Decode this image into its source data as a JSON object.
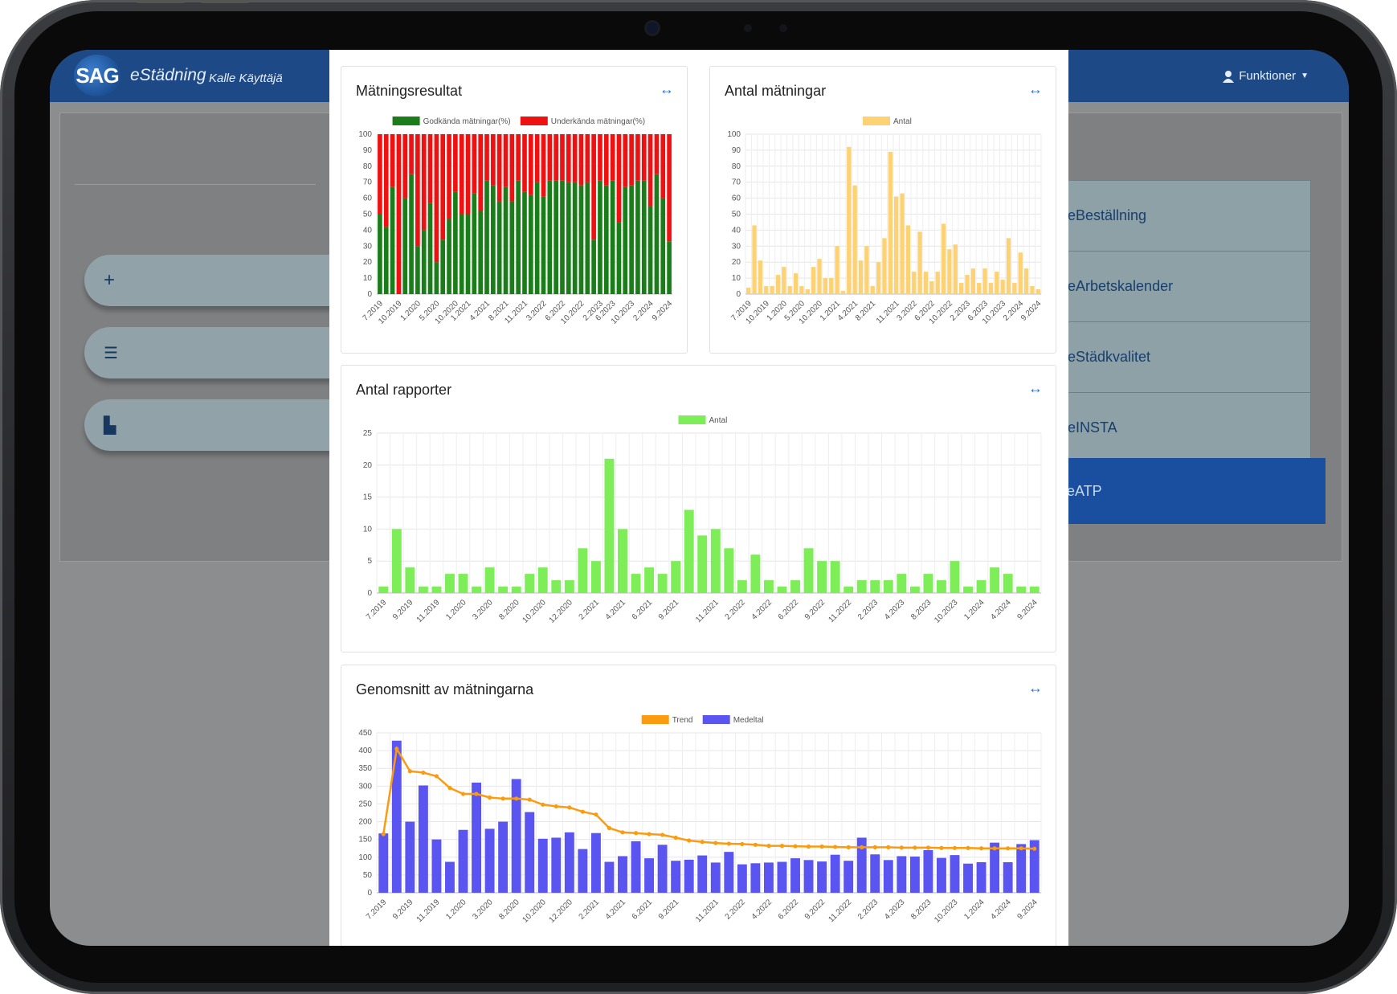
{
  "app": {
    "logo": "SAG",
    "name": "eStädning",
    "user": "Kalle Käyttäjä",
    "functions_label": "Funktioner"
  },
  "left_buttons": [
    {
      "icon": "plus-icon",
      "glyph": "+"
    },
    {
      "icon": "list-icon",
      "glyph": "☰"
    },
    {
      "icon": "chart-icon",
      "glyph": "▙"
    }
  ],
  "menu": {
    "items": [
      "eBeställning",
      "eArbetskalender",
      "eStädkvalitet",
      "eINSTA"
    ],
    "active": "eATP"
  },
  "cards": {
    "c1": "Mätningsresultat",
    "c2": "Antal mätningar",
    "c3": "Antal rapporter",
    "c4": "Genomsnitt av mätningarna",
    "expand_glyph": "↔"
  },
  "chart_data": [
    {
      "type": "bar",
      "stacked": true,
      "title": "Mätningsresultat",
      "ylim": [
        0,
        100
      ],
      "yticks": [
        0,
        10,
        20,
        30,
        40,
        50,
        60,
        70,
        80,
        90,
        100
      ],
      "tick_labels": [
        "7.2019",
        "10.2019",
        "1.2020",
        "5.2020",
        "10.2020",
        "1.2021",
        "4.2021",
        "8.2021",
        "11.2021",
        "3.2022",
        "6.2022",
        "10.2022",
        "2.2023",
        "6.2023",
        "10.2023",
        "2.2024",
        "9.2024"
      ],
      "legend": "top",
      "colors": [
        "#1a7d1a",
        "#ee1111"
      ],
      "series": [
        {
          "name": "Godkända mätningar(%)",
          "values": [
            50,
            42,
            67,
            0,
            60,
            75,
            30,
            40,
            57,
            20,
            34,
            47,
            64,
            50,
            50,
            63,
            52,
            71,
            68,
            58,
            67,
            58,
            71,
            64,
            62,
            70,
            61,
            71,
            71,
            71,
            70,
            70,
            68,
            70,
            34,
            71,
            68,
            71,
            45,
            67,
            68,
            71,
            71,
            55,
            75,
            60,
            33
          ]
        },
        {
          "name": "Underkända mätningar(%)",
          "values": [
            50,
            58,
            33,
            100,
            40,
            25,
            70,
            60,
            43,
            80,
            66,
            53,
            36,
            50,
            50,
            37,
            48,
            29,
            32,
            42,
            33,
            42,
            29,
            36,
            38,
            30,
            39,
            29,
            29,
            29,
            30,
            30,
            32,
            30,
            66,
            29,
            32,
            29,
            55,
            33,
            32,
            29,
            29,
            45,
            25,
            40,
            67
          ]
        }
      ]
    },
    {
      "type": "bar",
      "title": "Antal mätningar",
      "ylim": [
        0,
        100
      ],
      "yticks": [
        0,
        10,
        20,
        30,
        40,
        50,
        60,
        70,
        80,
        90,
        100
      ],
      "tick_labels": [
        "7.2019",
        "10.2019",
        "1.2020",
        "5.2020",
        "10.2020",
        "1.2021",
        "4.2021",
        "8.2021",
        "11.2021",
        "3.2022",
        "6.2022",
        "10.2022",
        "2.2023",
        "6.2023",
        "10.2023",
        "2.2024",
        "9.2024"
      ],
      "legend": "top",
      "colors": [
        "#fcd272"
      ],
      "series": [
        {
          "name": "Antal",
          "values": [
            4,
            43,
            21,
            5,
            5,
            12,
            17,
            5,
            13,
            5,
            3,
            17,
            22,
            10,
            10,
            30,
            2,
            92,
            68,
            21,
            30,
            5,
            20,
            35,
            89,
            61,
            63,
            43,
            14,
            39,
            14,
            8,
            14,
            44,
            28,
            31,
            7,
            12,
            16,
            7,
            16,
            7,
            14,
            9,
            35,
            7,
            26,
            16,
            5,
            3
          ]
        }
      ]
    },
    {
      "type": "bar",
      "title": "Antal rapporter",
      "ylim": [
        0,
        25
      ],
      "yticks": [
        0,
        5,
        10,
        15,
        20,
        25
      ],
      "tick_labels": [
        "7.2019",
        "9.2019",
        "11.2019",
        "1.2020",
        "3.2020",
        "8.2020",
        "10.2020",
        "12.2020",
        "2.2021",
        "4.2021",
        "6.2021",
        "9.2021",
        "11.2021",
        "2.2022",
        "4.2022",
        "6.2022",
        "9.2022",
        "11.2022",
        "2.2023",
        "4.2023",
        "8.2023",
        "10.2023",
        "1.2024",
        "4.2024",
        "9.2024"
      ],
      "legend": "top",
      "colors": [
        "#7dee58"
      ],
      "series": [
        {
          "name": "Antal",
          "values": [
            1,
            10,
            4,
            1,
            1,
            3,
            3,
            1,
            4,
            1,
            1,
            3,
            4,
            2,
            2,
            7,
            5,
            21,
            10,
            3,
            4,
            3,
            5,
            13,
            9,
            10,
            7,
            2,
            6,
            2,
            1,
            2,
            7,
            5,
            5,
            1,
            2,
            2,
            2,
            3,
            1,
            3,
            2,
            5,
            1,
            2,
            4,
            3,
            1,
            1
          ]
        }
      ]
    },
    {
      "type": "bar+line",
      "title": "Genomsnitt av mätningarna",
      "ylim": [
        0,
        450
      ],
      "yticks": [
        0,
        50,
        100,
        150,
        200,
        250,
        300,
        350,
        400,
        450
      ],
      "tick_labels": [
        "7.2019",
        "9.2019",
        "11.2019",
        "1.2020",
        "3.2020",
        "8.2020",
        "10.2020",
        "12.2020",
        "2.2021",
        "4.2021",
        "6.2021",
        "9.2021",
        "11.2021",
        "2.2022",
        "4.2022",
        "6.2022",
        "9.2022",
        "11.2022",
        "2.2023",
        "4.2023",
        "8.2023",
        "10.2023",
        "1.2024",
        "4.2024",
        "9.2024"
      ],
      "legend": "top",
      "colors": [
        "#fb9b10",
        "#5a55f0"
      ],
      "series": [
        {
          "name": "Trend",
          "values": [
            165,
            405,
            342,
            338,
            328,
            295,
            278,
            278,
            268,
            265,
            265,
            262,
            248,
            243,
            240,
            228,
            220,
            182,
            170,
            168,
            165,
            163,
            155,
            147,
            143,
            140,
            138,
            137,
            135,
            132,
            132,
            131,
            130,
            130,
            129,
            128,
            128,
            128,
            128,
            127,
            127,
            127,
            126,
            126,
            126,
            125,
            125,
            125,
            125,
            124
          ]
        },
        {
          "name": "Medeltal",
          "values": [
            167,
            428,
            200,
            302,
            150,
            87,
            177,
            310,
            180,
            200,
            320,
            227,
            152,
            155,
            170,
            123,
            168,
            87,
            103,
            145,
            97,
            135,
            90,
            93,
            105,
            85,
            115,
            80,
            83,
            85,
            87,
            97,
            92,
            88,
            107,
            90,
            155,
            108,
            92,
            103,
            102,
            120,
            98,
            106,
            82,
            86,
            141,
            86,
            137,
            148
          ]
        }
      ]
    }
  ]
}
